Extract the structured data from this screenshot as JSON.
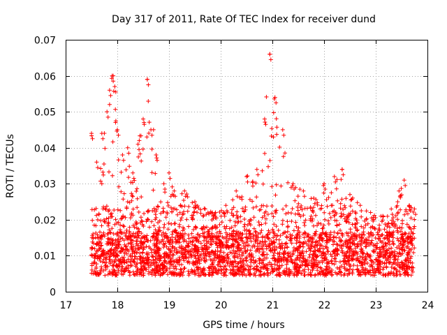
{
  "chart_data": {
    "type": "scatter",
    "title": "Day 317 of 2011, Rate Of TEC Index for receiver dund",
    "xlabel": "GPS time / hours",
    "ylabel": "ROTI / TECUs",
    "xlim": [
      17,
      24
    ],
    "ylim": [
      0,
      0.07
    ],
    "grid": true,
    "marker": "+",
    "series_color": "#ff0000",
    "x_ticks": [
      "17",
      "18",
      "19",
      "20",
      "21",
      "22",
      "23",
      "24"
    ],
    "y_ticks": [
      "0",
      "0.01",
      "0.02",
      "0.03",
      "0.04",
      "0.05",
      "0.06",
      "0.07"
    ],
    "x_range_of_data": [
      17.5,
      23.75
    ],
    "profile_description": "Scattered ROTI points between 17.5h and 23.75h; dense band around 0.005-0.02 with peaks near 17.9h (~0.06), 18.6h (~0.059), 21.0h (~0.066) and 22.35h (~0.034)",
    "envelope": [
      [
        17.5,
        0.044
      ],
      [
        17.6,
        0.036
      ],
      [
        17.7,
        0.044
      ],
      [
        17.8,
        0.05
      ],
      [
        17.85,
        0.056
      ],
      [
        17.9,
        0.06
      ],
      [
        17.95,
        0.057
      ],
      [
        18.0,
        0.045
      ],
      [
        18.1,
        0.038
      ],
      [
        18.2,
        0.04
      ],
      [
        18.3,
        0.033
      ],
      [
        18.4,
        0.041
      ],
      [
        18.5,
        0.048
      ],
      [
        18.58,
        0.059
      ],
      [
        18.65,
        0.045
      ],
      [
        18.75,
        0.038
      ],
      [
        18.9,
        0.03
      ],
      [
        19.0,
        0.033
      ],
      [
        19.1,
        0.028
      ],
      [
        19.3,
        0.028
      ],
      [
        19.5,
        0.025
      ],
      [
        19.7,
        0.023
      ],
      [
        19.9,
        0.022
      ],
      [
        20.1,
        0.024
      ],
      [
        20.3,
        0.028
      ],
      [
        20.5,
        0.032
      ],
      [
        20.7,
        0.034
      ],
      [
        20.85,
        0.048
      ],
      [
        20.95,
        0.066
      ],
      [
        21.05,
        0.054
      ],
      [
        21.2,
        0.045
      ],
      [
        21.4,
        0.03
      ],
      [
        21.6,
        0.028
      ],
      [
        21.8,
        0.026
      ],
      [
        22.0,
        0.03
      ],
      [
        22.2,
        0.032
      ],
      [
        22.35,
        0.034
      ],
      [
        22.5,
        0.027
      ],
      [
        22.7,
        0.024
      ],
      [
        22.9,
        0.022
      ],
      [
        23.1,
        0.021
      ],
      [
        23.3,
        0.023
      ],
      [
        23.45,
        0.028
      ],
      [
        23.55,
        0.031
      ],
      [
        23.65,
        0.024
      ],
      [
        23.75,
        0.023
      ]
    ],
    "sample_points": [
      [
        17.55,
        0.01
      ],
      [
        17.62,
        0.02
      ],
      [
        17.7,
        0.03
      ],
      [
        17.85,
        0.052
      ],
      [
        17.92,
        0.06
      ],
      [
        18.0,
        0.012
      ],
      [
        18.2,
        0.025
      ],
      [
        18.4,
        0.015
      ],
      [
        18.58,
        0.059
      ],
      [
        18.7,
        0.045
      ],
      [
        19.0,
        0.008
      ],
      [
        19.5,
        0.012
      ],
      [
        20.0,
        0.011
      ],
      [
        20.5,
        0.015
      ],
      [
        20.95,
        0.066
      ],
      [
        21.1,
        0.009
      ],
      [
        21.5,
        0.012
      ],
      [
        22.0,
        0.01
      ],
      [
        22.35,
        0.034
      ],
      [
        23.0,
        0.009
      ],
      [
        23.5,
        0.012
      ],
      [
        23.7,
        0.006
      ]
    ]
  }
}
